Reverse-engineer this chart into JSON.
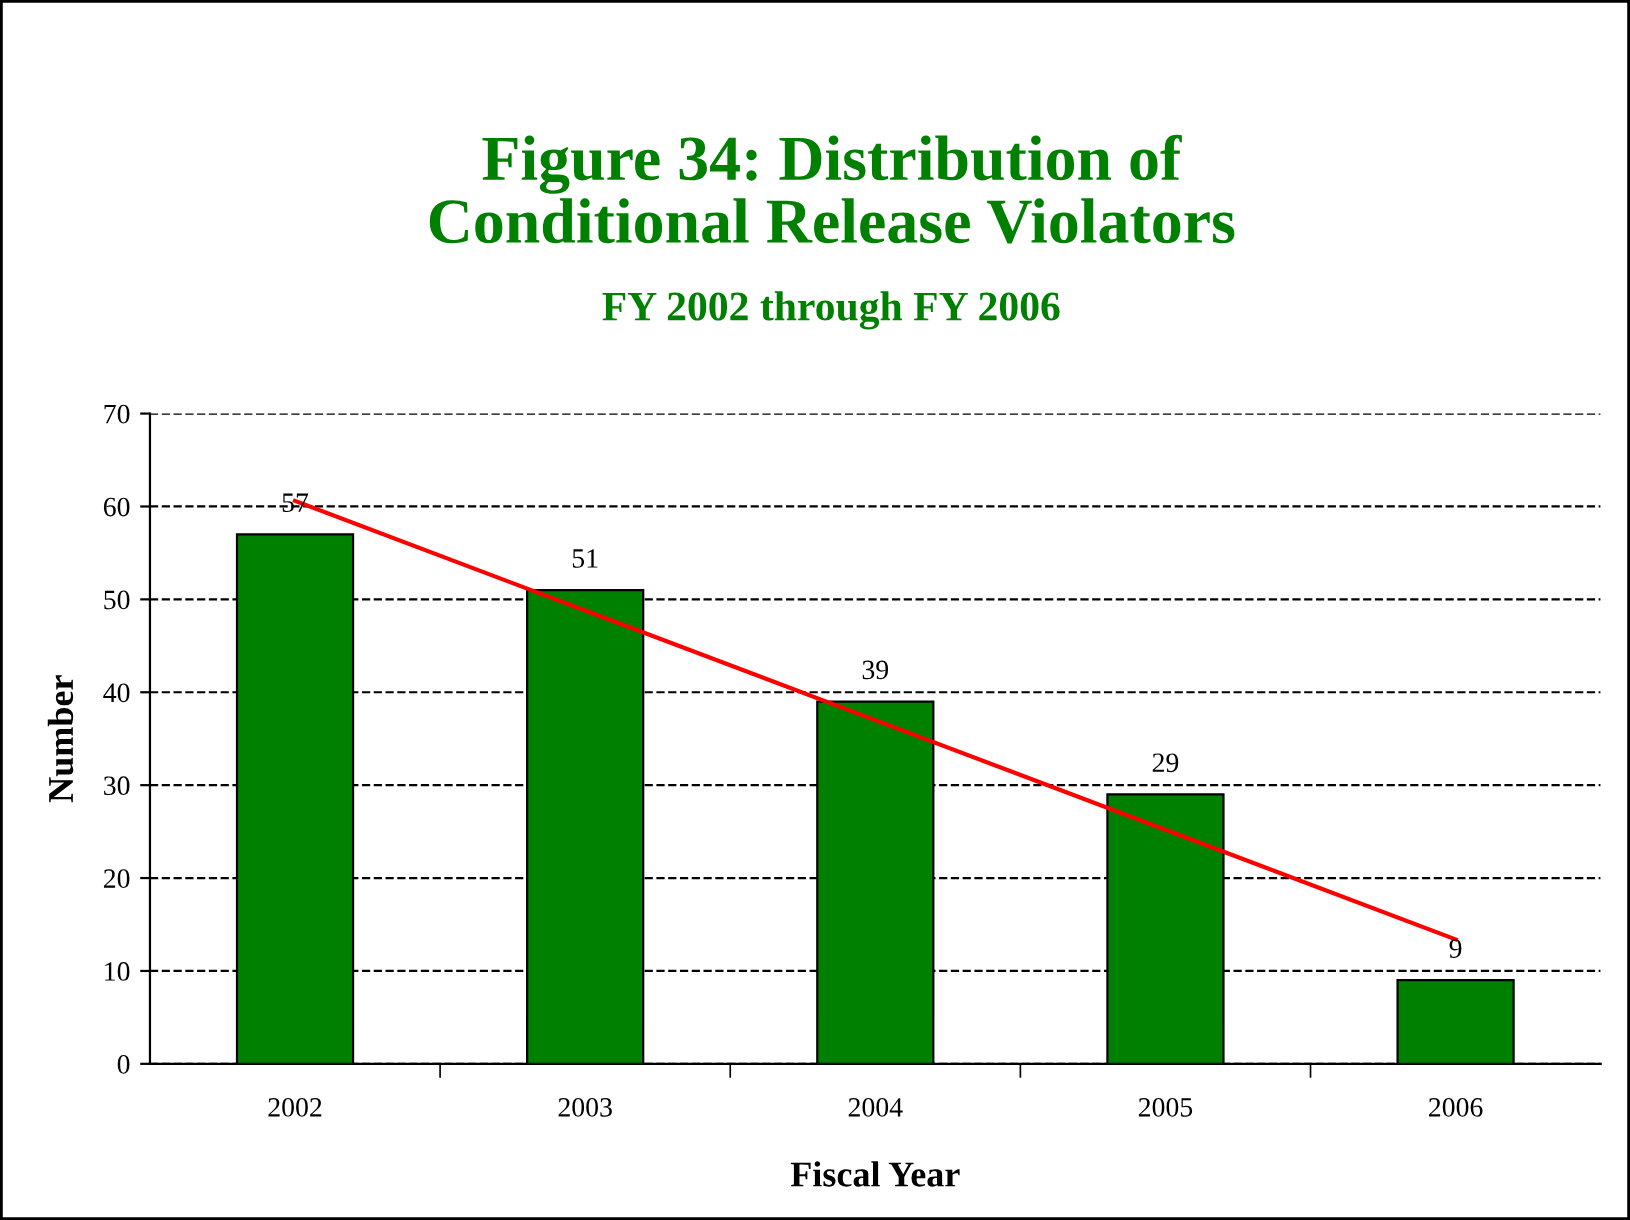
{
  "chart_data": {
    "type": "bar",
    "title": "Figure 34: Distribution of\nConditional Release Violators",
    "subtitle": "FY 2002 through FY 2006",
    "xlabel": "Fiscal Year",
    "ylabel": "Number",
    "categories": [
      "2002",
      "2003",
      "2004",
      "2005",
      "2006"
    ],
    "series": [
      {
        "color": "#008000",
        "values": [
          57,
          51,
          39,
          29,
          9
        ],
        "value_labels": [
          "57",
          "51",
          "39",
          "29",
          "9"
        ]
      },
      {
        "type": "line",
        "color": "#ff0000",
        "values": [
          60.6,
          48.8,
          37,
          25.2,
          13.4
        ]
      }
    ],
    "ylim": [
      0,
      70
    ],
    "yticks": [
      0,
      10,
      20,
      30,
      40,
      50,
      60,
      70
    ],
    "grid": "y",
    "line_style": "solid"
  }
}
